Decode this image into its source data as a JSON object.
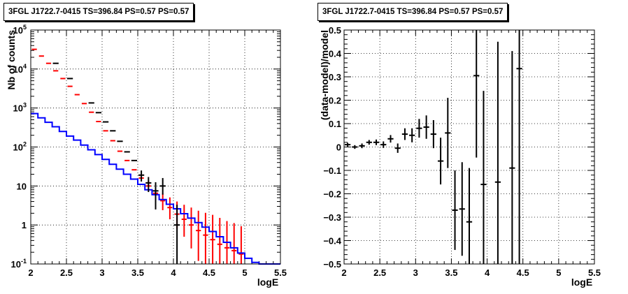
{
  "chart_data": [
    {
      "type": "line",
      "title": "3FGL J1722.7-0415 TS=396.84 PS=0.57 PS=0.57",
      "xlabel": "logE",
      "ylabel": "Nb of counts",
      "xlim": [
        2,
        5.5
      ],
      "ylim": [
        0.1,
        100000
      ],
      "yscale": "log",
      "grid": true,
      "xticks": [
        "2",
        "2.5",
        "3",
        "3.5",
        "4",
        "4.5",
        "5",
        "5.5"
      ],
      "yticks": [
        "10^-1",
        "1",
        "10",
        "10^2",
        "10^3",
        "10^4",
        "10^5"
      ],
      "x_bin_edges": [
        2.0,
        2.1,
        2.2,
        2.3,
        2.4,
        2.5,
        2.6,
        2.7,
        2.8,
        2.9,
        3.0,
        3.1,
        3.2,
        3.3,
        3.4,
        3.5,
        3.6,
        3.7,
        3.8,
        3.9,
        4.0,
        4.1,
        4.2,
        4.3,
        4.4,
        4.5,
        4.6,
        4.7,
        4.8,
        4.9,
        5.0,
        5.1,
        5.2,
        5.3,
        5.4,
        5.5
      ],
      "series": [
        {
          "name": "",
          "color": "#ff0000",
          "style": "step-errors",
          "values": [
            32000,
            21500,
            14000,
            9000,
            5700,
            3600,
            2200,
            1300,
            780,
            450,
            260,
            145,
            78,
            45,
            26,
            16,
            10,
            6.5,
            4.2,
            2.8,
            1.9,
            1.4,
            1.0,
            0.72,
            0.55,
            0.42,
            0.32,
            0.26,
            0.22,
            0.18
          ],
          "err_low": [
            0,
            0,
            0,
            0,
            0,
            0,
            0,
            0,
            0,
            0,
            0,
            0,
            0,
            0,
            0,
            0,
            0,
            0,
            1.8,
            1.4,
            1.1,
            0.9,
            0.75,
            0.6,
            0.48,
            0.4,
            0.31,
            0.25,
            0.21,
            0.17
          ],
          "err_high": [
            0,
            0,
            0,
            0,
            0,
            0,
            0,
            0,
            0,
            0,
            0,
            0,
            0,
            0,
            0,
            0,
            3.5,
            2.8,
            2.2,
            2.3,
            2.1,
            1.9,
            1.8,
            1.6,
            1.5,
            1.4,
            1.2,
            1.0,
            0.9,
            0.75
          ]
        },
        {
          "name": "",
          "color": "#0000ff",
          "style": "step",
          "values": [
            720,
            560,
            430,
            330,
            250,
            190,
            150,
            112,
            85,
            64,
            48,
            36,
            27,
            20,
            15,
            11,
            8.0,
            6.0,
            4.5,
            3.4,
            2.6,
            1.95,
            1.5,
            1.15,
            0.88,
            0.68,
            0.5,
            0.36,
            0.26,
            0.19,
            0.14,
            0.11,
            0.1,
            0.1,
            0.1
          ]
        },
        {
          "name": "",
          "color": "#000000",
          "style": "points-errors",
          "x": [
            2.35,
            2.55,
            2.85,
            2.95,
            3.05,
            3.15,
            3.25,
            3.35,
            3.45,
            3.55,
            3.65,
            3.75,
            3.85,
            4.05
          ],
          "values": [
            14000,
            5700,
            1350,
            760,
            440,
            260,
            140,
            75,
            45,
            19,
            12,
            7.5,
            10,
            1
          ],
          "err_low": [
            0,
            0,
            0,
            0,
            0,
            0,
            0,
            0,
            0,
            6,
            5,
            5,
            4,
            0.98
          ],
          "err_high": [
            0,
            0,
            0,
            0,
            0,
            0,
            0,
            0,
            0,
            6,
            5,
            5,
            6,
            2.3
          ]
        }
      ]
    },
    {
      "type": "scatter",
      "title": "3FGL J1722.7-0415 TS=396.84 PS=0.57 PS=0.57",
      "xlabel": "logE",
      "ylabel": "(data-model)/model",
      "xlim": [
        2,
        5.5
      ],
      "ylim": [
        -0.5,
        0.5
      ],
      "grid": true,
      "xticks": [
        "2",
        "2.5",
        "3",
        "3.5",
        "4",
        "4.5",
        "5",
        "5.5"
      ],
      "yticks": [
        "-0.5",
        "-0.4",
        "-0.3",
        "-0.2",
        "-0.1",
        "0",
        "0.1",
        "0.2",
        "0.3",
        "0.4",
        "0.5"
      ],
      "series": [
        {
          "name": "",
          "color": "#000000",
          "x": [
            2.05,
            2.15,
            2.25,
            2.35,
            2.45,
            2.55,
            2.65,
            2.75,
            2.85,
            2.95,
            3.05,
            3.15,
            3.25,
            3.35,
            3.45,
            3.55,
            3.65,
            3.75,
            3.85,
            3.95,
            4.15,
            4.35,
            4.45
          ],
          "y": [
            0.01,
            0.0,
            0.005,
            0.02,
            0.02,
            0.01,
            0.035,
            -0.005,
            0.055,
            0.05,
            0.08,
            0.085,
            0.055,
            -0.06,
            0.06,
            -0.27,
            -0.265,
            -0.32,
            0.305,
            -0.16,
            -0.15,
            -0.09,
            0.335
          ],
          "err": [
            0.008,
            0.008,
            0.01,
            0.01,
            0.012,
            0.014,
            0.016,
            0.02,
            0.025,
            0.03,
            0.04,
            0.05,
            0.06,
            0.1,
            0.15,
            0.17,
            0.2,
            0.23,
            0.35,
            0.4,
            0.6,
            0.5,
            0.85
          ]
        }
      ]
    }
  ]
}
